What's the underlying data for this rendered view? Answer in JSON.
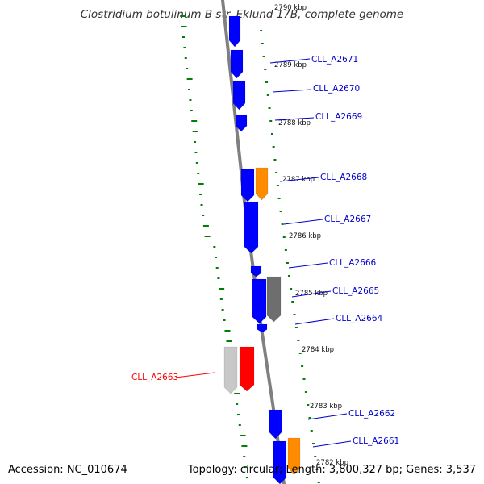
{
  "title": "Clostridium botulinum B str. Eklund 17B, complete genome",
  "footer": {
    "accession": "Accession: NC_010674",
    "summary": "Topology: circular; Length: 3,800,327 bp; Genes: 3,537"
  },
  "colors": {
    "forward": "#0000ff",
    "orange": "#ff8c00",
    "gray": "#6e6e6e",
    "light_gray": "#c8c8c8",
    "red": "#ff0000",
    "gc_plot": "#008000",
    "backbone": "#808080",
    "label_blue": "#0000cc",
    "label_red": "#ff0000"
  },
  "kbp_ticks": [
    {
      "label": "2790 kbp"
    },
    {
      "label": "2789 kbp"
    },
    {
      "label": "2788 kbp"
    },
    {
      "label": "2787 kbp"
    },
    {
      "label": "2786 kbp"
    },
    {
      "label": "2785 kbp"
    },
    {
      "label": "2784 kbp"
    },
    {
      "label": "2783 kbp"
    },
    {
      "label": "2782 kbp"
    }
  ],
  "gene_labels": [
    {
      "id": "CLL_A2671",
      "text": "CLL_A2671",
      "color": "blue"
    },
    {
      "id": "CLL_A2670",
      "text": "CLL_A2670",
      "color": "blue"
    },
    {
      "id": "CLL_A2669",
      "text": "CLL_A2669",
      "color": "blue"
    },
    {
      "id": "CLL_A2668",
      "text": "CLL_A2668",
      "color": "blue"
    },
    {
      "id": "CLL_A2667",
      "text": "CLL_A2667",
      "color": "blue"
    },
    {
      "id": "CLL_A2666",
      "text": "CLL_A2666",
      "color": "blue"
    },
    {
      "id": "CLL_A2665",
      "text": "CLL_A2665",
      "color": "blue"
    },
    {
      "id": "CLL_A2664",
      "text": "CLL_A2664",
      "color": "blue"
    },
    {
      "id": "CLL_A2663",
      "text": "CLL_A2663",
      "color": "red"
    },
    {
      "id": "CLL_A2662",
      "text": "CLL_A2662",
      "color": "blue"
    },
    {
      "id": "CLL_A2661",
      "text": "CLL_A2661",
      "color": "blue"
    }
  ]
}
